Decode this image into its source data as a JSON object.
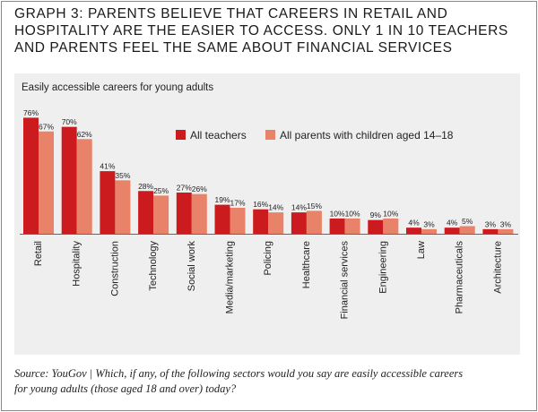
{
  "title": "GRAPH 3: PARENTS BELIEVE THAT CAREERS IN RETAIL AND HOSPITALITY ARE THE EASIER TO ACCESS. ONLY 1 IN 10 TEACHERS AND PARENTS FEEL THE SAME ABOUT FINANCIAL SERVICES",
  "footer": {
    "source_line_1": "Source: YouGov | Which, if any, of the following sectors would you say are easily accessible careers",
    "source_line_2": "for young adults (those aged 18 and over) today?"
  },
  "colors": {
    "teachers": "#cc1b1f",
    "parents": "#e8836a",
    "panel_bg": "#efefef"
  },
  "chart_data": {
    "type": "bar",
    "title": "Easily accessible careers for young adults",
    "xlabel": "",
    "ylabel": "",
    "ylim": [
      0,
      80
    ],
    "grid": false,
    "legend_position": "top-right",
    "categories": [
      "Retail",
      "Hospitality",
      "Construction",
      "Technology",
      "Social work",
      "Media/marketing",
      "Policing",
      "Healthcare",
      "Financial services",
      "Engineering",
      "Law",
      "Pharmaceuticals",
      "Architecture"
    ],
    "series": [
      {
        "name": "All teachers",
        "values": [
          76,
          70,
          41,
          28,
          27,
          19,
          16,
          14,
          10,
          9,
          4,
          4,
          3
        ]
      },
      {
        "name": "All parents with children aged 14–18",
        "values": [
          67,
          62,
          35,
          25,
          26,
          17,
          14,
          15,
          10,
          10,
          3,
          5,
          3
        ]
      }
    ]
  }
}
